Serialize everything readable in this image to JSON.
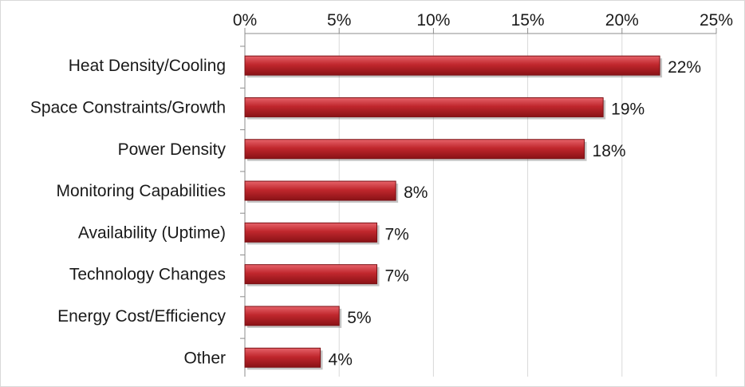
{
  "chart_data": {
    "type": "bar",
    "orientation": "horizontal",
    "categories": [
      "Heat Density/Cooling",
      "Space Constraints/Growth",
      "Power Density",
      "Monitoring Capabilities",
      "Availability (Uptime)",
      "Technology Changes",
      "Energy Cost/Efficiency",
      "Other"
    ],
    "values": [
      22,
      19,
      18,
      8,
      7,
      7,
      5,
      4
    ],
    "data_labels": [
      "22%",
      "19%",
      "18%",
      "8%",
      "7%",
      "7%",
      "5%",
      "4%"
    ],
    "x_ticks": [
      "0%",
      "5%",
      "10%",
      "15%",
      "20%",
      "25%"
    ],
    "xlim": [
      0,
      25
    ],
    "x_axis_position": "top",
    "grid": "vertical",
    "bar_color": "#c0272d",
    "title": "",
    "xlabel": "",
    "ylabel": ""
  }
}
